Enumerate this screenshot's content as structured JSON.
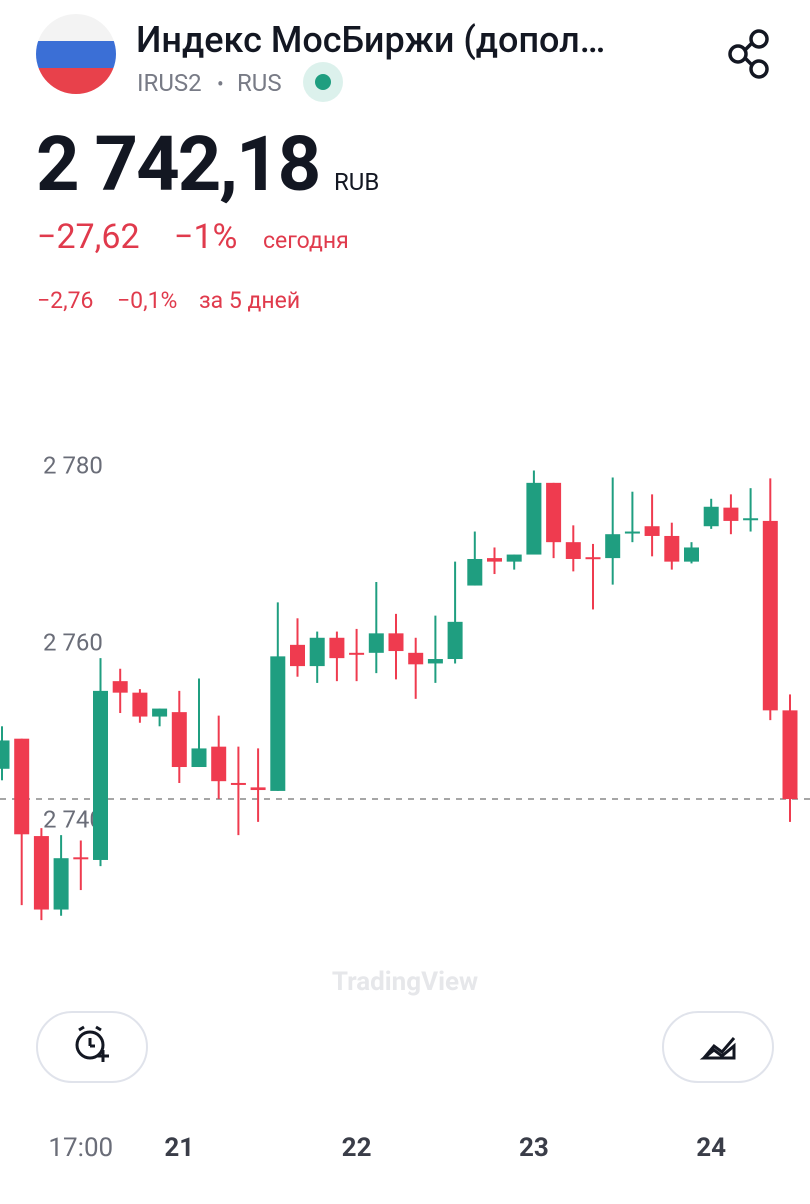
{
  "header": {
    "title": "Индекс МосБиржи (допол…",
    "ticker": "IRUS2",
    "separator": "•",
    "market": "RUS",
    "price": "2 742,18",
    "currency": "RUB",
    "change_today": "−27,62",
    "change_today_pct": "−1%",
    "today_label": "сегодня",
    "change_5d": "−2,76",
    "change_5d_pct": "−0,1%",
    "period_label": "за 5 дней"
  },
  "watermark": "TradingView",
  "chart_data": {
    "type": "candlestick",
    "categories": [
      null,
      null,
      null,
      null,
      "17:00",
      null,
      null,
      null,
      null,
      "21",
      null,
      null,
      null,
      null,
      null,
      null,
      null,
      null,
      "22",
      null,
      null,
      null,
      null,
      null,
      null,
      null,
      null,
      "23",
      null,
      null,
      null,
      null,
      null,
      null,
      null,
      null,
      "24",
      null,
      null,
      null,
      null
    ],
    "open": [
      2745.6,
      2749.0,
      2738.0,
      2729.7,
      2735.6,
      2735.3,
      2755.5,
      2754.2,
      2751.5,
      2752.0,
      2745.8,
      2748.1,
      2744.0,
      2743.5,
      2743.1,
      2759.6,
      2757.2,
      2760.4,
      2758.7,
      2758.7,
      2760.9,
      2758.7,
      2757.5,
      2758.0,
      2766.3,
      2769.4,
      2769.0,
      2769.8,
      2777.9,
      2771.2,
      2769.5,
      2769.4,
      2772.2,
      2773.0,
      2771.9,
      2769.0,
      2773.0,
      2775.1,
      2773.7,
      2773.6,
      2752.2
    ],
    "high": [
      2750.4,
      2749.0,
      2738.9,
      2738.1,
      2737.5,
      2758.1,
      2756.9,
      2754.6,
      2752.4,
      2754.4,
      2755.8,
      2751.6,
      2748.1,
      2747.9,
      2764.4,
      2762.6,
      2761.1,
      2761.1,
      2761.4,
      2766.7,
      2763.1,
      2760.4,
      2762.9,
      2769.0,
      2772.4,
      2770.6,
      2769.8,
      2779.3,
      2777.9,
      2773.1,
      2771.0,
      2778.5,
      2776.9,
      2776.6,
      2773.4,
      2771.2,
      2776.1,
      2776.6,
      2777.3,
      2778.4,
      2754.0
    ],
    "low": [
      2744.3,
      2730.2,
      2728.5,
      2729.0,
      2731.9,
      2734.6,
      2751.9,
      2750.8,
      2750.4,
      2744.0,
      2745.8,
      2742.2,
      2738.1,
      2739.6,
      2743.1,
      2756.0,
      2755.3,
      2755.5,
      2755.5,
      2756.4,
      2755.7,
      2753.5,
      2755.3,
      2757.5,
      2766.3,
      2767.6,
      2768.1,
      2769.8,
      2769.4,
      2767.9,
      2763.6,
      2766.4,
      2771.2,
      2769.6,
      2768.1,
      2768.8,
      2772.7,
      2772.1,
      2772.4,
      2751.1,
      2739.6
    ],
    "close": [
      2748.8,
      2738.2,
      2729.7,
      2735.5,
      2735.4,
      2754.4,
      2754.2,
      2751.5,
      2752.4,
      2745.8,
      2747.9,
      2744.2,
      2743.8,
      2743.2,
      2758.3,
      2757.2,
      2760.4,
      2758.1,
      2758.5,
      2760.9,
      2758.9,
      2757.4,
      2758.0,
      2762.2,
      2769.3,
      2769.0,
      2769.8,
      2777.9,
      2771.2,
      2769.3,
      2769.3,
      2772.1,
      2772.4,
      2771.9,
      2769.0,
      2770.6,
      2775.2,
      2773.6,
      2773.9,
      2752.2,
      2742.18
    ],
    "up_color": "#1f9e80",
    "down_color": "#ef3b4f",
    "price_line": 2742.18,
    "ylim": [
      2724,
      2785
    ],
    "yticks": [
      {
        "value": 2740,
        "label": "2 740"
      },
      {
        "value": 2760,
        "label": "2 760"
      },
      {
        "value": 2780,
        "label": "2 780"
      }
    ],
    "grid": false
  }
}
